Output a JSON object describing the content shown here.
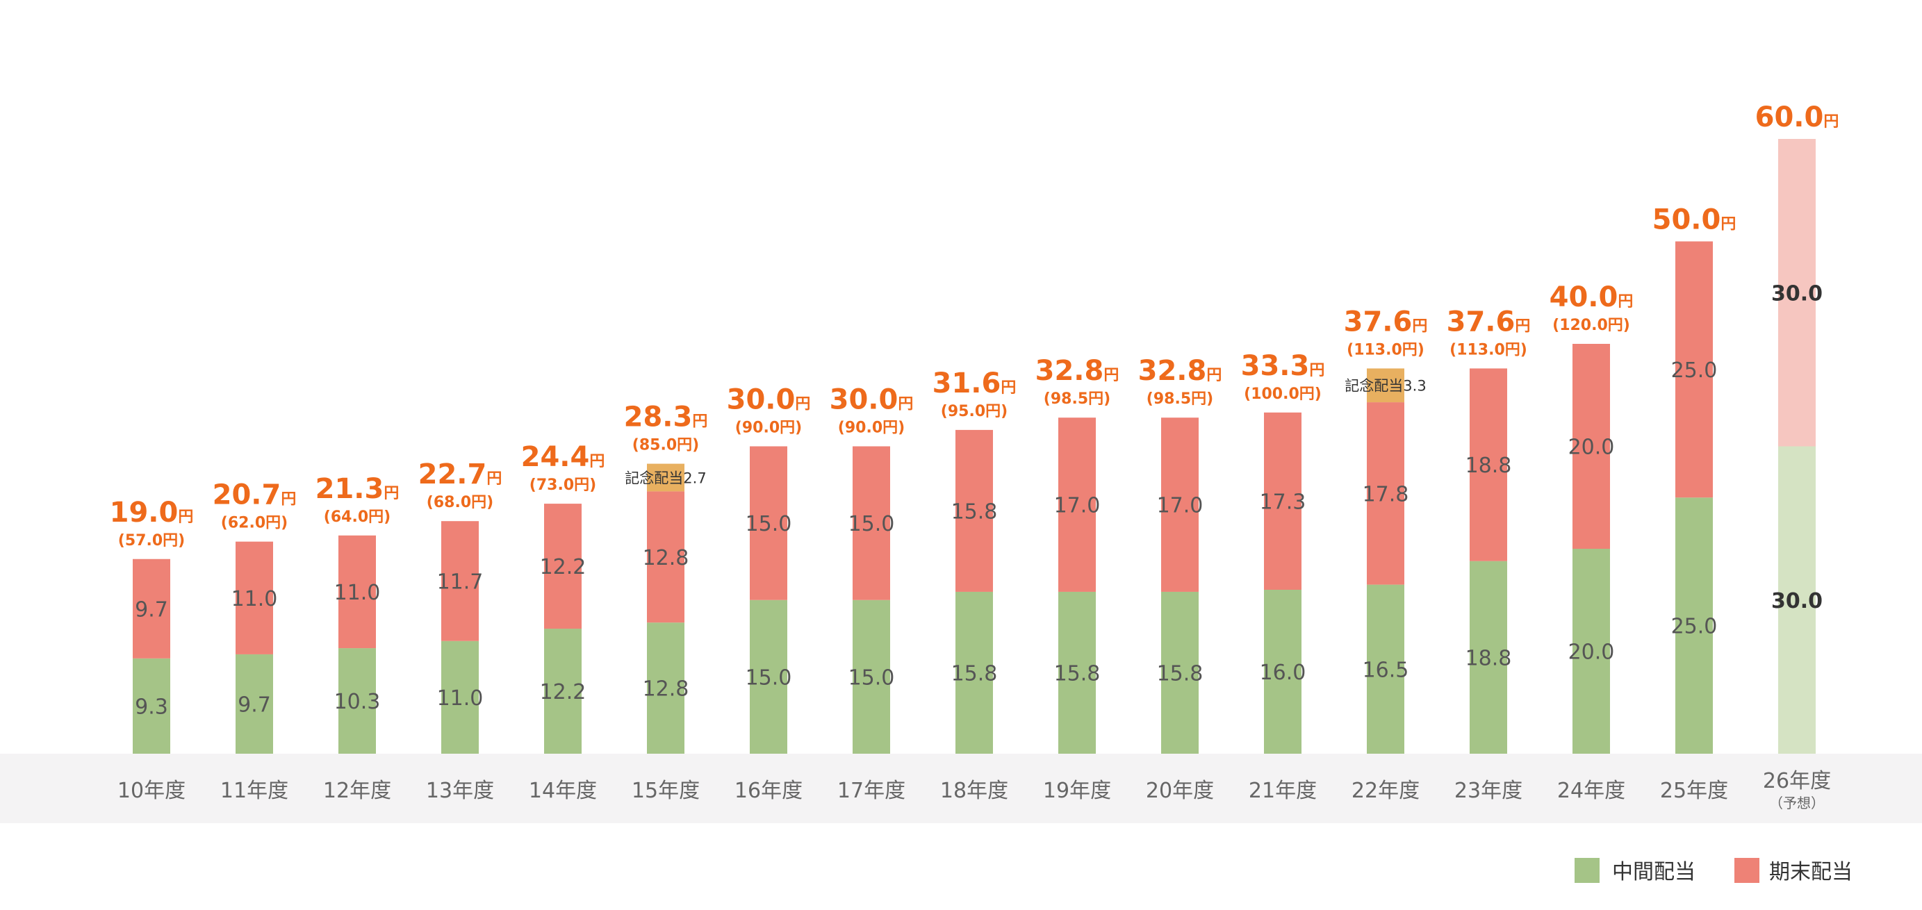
{
  "colors": {
    "interim": "#a5c487",
    "yearend": "#ee8276",
    "commemorative": "#e8b060",
    "interim_forecast": "#d5e3c3",
    "yearend_forecast": "#f6c6c0",
    "total_text": "#ee6a1b",
    "axis_band": "#f4f3f4"
  },
  "legend": {
    "interim_label": "中間配当",
    "yearend_label": "期末配当"
  },
  "chart_data": {
    "type": "bar",
    "stacked": true,
    "categories": [
      "10年度",
      "11年度",
      "12年度",
      "13年度",
      "14年度",
      "15年度",
      "16年度",
      "17年度",
      "18年度",
      "19年度",
      "20年度",
      "21年度",
      "22年度",
      "23年度",
      "24年度",
      "25年度",
      "26年度"
    ],
    "category_sublabels": [
      "",
      "",
      "",
      "",
      "",
      "",
      "",
      "",
      "",
      "",
      "",
      "",
      "",
      "",
      "",
      "",
      "（予想）"
    ],
    "forecast": [
      false,
      false,
      false,
      false,
      false,
      false,
      false,
      false,
      false,
      false,
      false,
      false,
      false,
      false,
      false,
      false,
      true
    ],
    "series": [
      {
        "name": "中間配当",
        "values": [
          9.3,
          9.7,
          10.3,
          11.0,
          12.2,
          12.8,
          15.0,
          15.0,
          15.8,
          15.8,
          15.8,
          16.0,
          16.5,
          18.8,
          20.0,
          25.0,
          30.0
        ]
      },
      {
        "name": "期末配当",
        "values": [
          9.7,
          11.0,
          11.0,
          11.7,
          12.2,
          12.8,
          15.0,
          15.0,
          15.8,
          17.0,
          17.0,
          17.3,
          17.8,
          18.8,
          20.0,
          25.0,
          30.0
        ]
      },
      {
        "name": "記念配当",
        "values": [
          0,
          0,
          0,
          0,
          0,
          2.7,
          0,
          0,
          0,
          0,
          0,
          0,
          3.3,
          0,
          0,
          0,
          0
        ]
      }
    ],
    "commemorative_labels": [
      "",
      "",
      "",
      "",
      "",
      "記念配当2.7",
      "",
      "",
      "",
      "",
      "",
      "",
      "記念配当3.3",
      "",
      "",
      "",
      ""
    ],
    "segment_labels": {
      "interim": [
        "9.3",
        "9.7",
        "10.3",
        "11.0",
        "12.2",
        "12.8",
        "15.0",
        "15.0",
        "15.8",
        "15.8",
        "15.8",
        "16.0",
        "16.5",
        "18.8",
        "20.0",
        "25.0",
        "30.0"
      ],
      "yearend": [
        "9.7",
        "11.0",
        "11.0",
        "11.7",
        "12.2",
        "12.8",
        "15.0",
        "15.0",
        "15.8",
        "17.0",
        "17.0",
        "17.3",
        "17.8",
        "18.8",
        "20.0",
        "25.0",
        "30.0"
      ]
    },
    "totals": [
      "19.0",
      "20.7",
      "21.3",
      "22.7",
      "24.4",
      "28.3",
      "30.0",
      "30.0",
      "31.6",
      "32.8",
      "32.8",
      "33.3",
      "37.6",
      "37.6",
      "40.0",
      "50.0",
      "60.0"
    ],
    "total_unit": "円",
    "pre_split_totals": [
      "(57.0円)",
      "(62.0円)",
      "(64.0円)",
      "(68.0円)",
      "(73.0円)",
      "(85.0円)",
      "(90.0円)",
      "(90.0円)",
      "(95.0円)",
      "(98.5円)",
      "(98.5円)",
      "(100.0円)",
      "(113.0円)",
      "(113.0円)",
      "(120.0円)",
      "",
      ""
    ],
    "ylim": [
      0,
      60
    ],
    "grid": false,
    "legend_position": "bottom-right",
    "title": "",
    "xlabel": "",
    "ylabel": ""
  }
}
